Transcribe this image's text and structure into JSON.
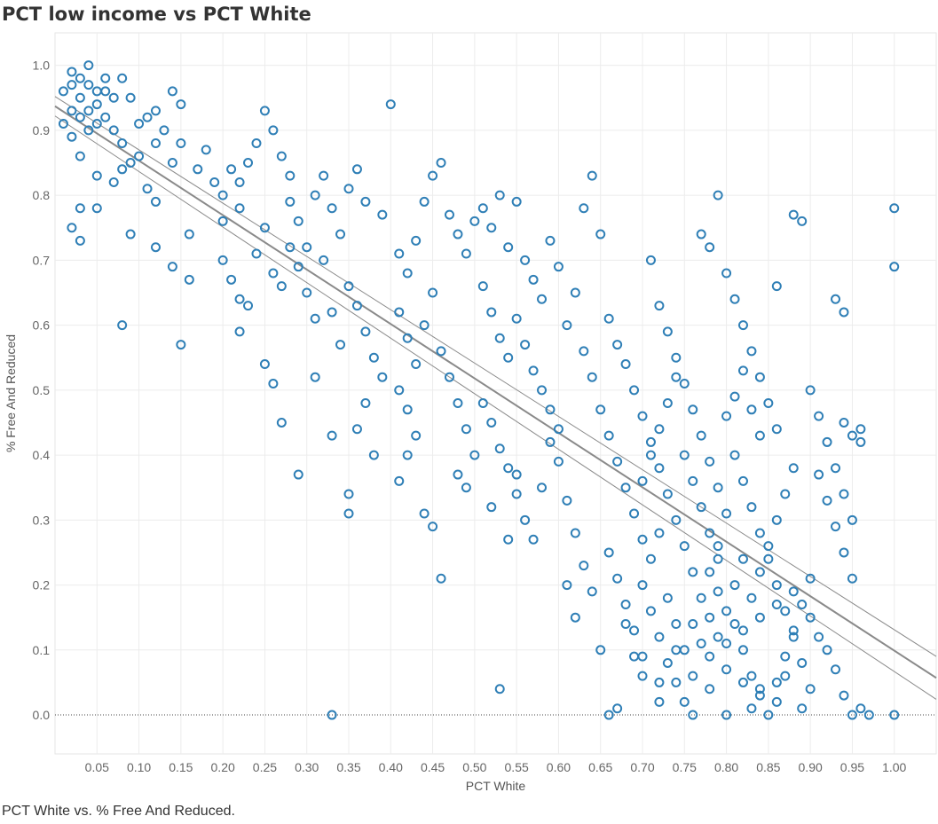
{
  "title": "PCT low income vs PCT White",
  "caption": "PCT White vs. % Free And Reduced.",
  "chart_data": {
    "type": "scatter",
    "title": "PCT low income vs PCT White",
    "xlabel": "PCT White",
    "ylabel": "% Free And Reduced",
    "xlim": [
      0.0,
      1.05
    ],
    "ylim": [
      -0.06,
      1.05
    ],
    "xticks": [
      "0.05",
      "0.10",
      "0.15",
      "0.20",
      "0.25",
      "0.30",
      "0.35",
      "0.40",
      "0.45",
      "0.50",
      "0.55",
      "0.60",
      "0.65",
      "0.70",
      "0.75",
      "0.80",
      "0.85",
      "0.90",
      "0.95",
      "1.00"
    ],
    "yticks": [
      "0.0",
      "0.1",
      "0.2",
      "0.3",
      "0.4",
      "0.5",
      "0.6",
      "0.7",
      "0.8",
      "0.9",
      "1.0"
    ],
    "grid": true,
    "marker_color": "#2f7fb6",
    "trend_color": "#8a8a8a",
    "trend_line": {
      "intercept": 0.937,
      "slope": -0.838,
      "band": 0.015
    },
    "points": [
      [
        0.01,
        0.96
      ],
      [
        0.02,
        0.99
      ],
      [
        0.02,
        0.97
      ],
      [
        0.03,
        0.98
      ],
      [
        0.03,
        0.95
      ],
      [
        0.04,
        0.97
      ],
      [
        0.04,
        1.0
      ],
      [
        0.05,
        0.96
      ],
      [
        0.05,
        0.94
      ],
      [
        0.06,
        0.98
      ],
      [
        0.06,
        0.96
      ],
      [
        0.07,
        0.95
      ],
      [
        0.02,
        0.93
      ],
      [
        0.03,
        0.92
      ],
      [
        0.04,
        0.93
      ],
      [
        0.05,
        0.91
      ],
      [
        0.06,
        0.92
      ],
      [
        0.08,
        0.98
      ],
      [
        0.09,
        0.95
      ],
      [
        0.01,
        0.91
      ],
      [
        0.02,
        0.89
      ],
      [
        0.03,
        0.86
      ],
      [
        0.04,
        0.9
      ],
      [
        0.07,
        0.9
      ],
      [
        0.08,
        0.88
      ],
      [
        0.1,
        0.91
      ],
      [
        0.11,
        0.92
      ],
      [
        0.12,
        0.93
      ],
      [
        0.13,
        0.9
      ],
      [
        0.14,
        0.96
      ],
      [
        0.15,
        0.94
      ],
      [
        0.09,
        0.85
      ],
      [
        0.1,
        0.86
      ],
      [
        0.12,
        0.88
      ],
      [
        0.14,
        0.85
      ],
      [
        0.15,
        0.88
      ],
      [
        0.05,
        0.83
      ],
      [
        0.07,
        0.82
      ],
      [
        0.08,
        0.84
      ],
      [
        0.11,
        0.81
      ],
      [
        0.12,
        0.79
      ],
      [
        0.03,
        0.78
      ],
      [
        0.05,
        0.78
      ],
      [
        0.02,
        0.75
      ],
      [
        0.03,
        0.73
      ],
      [
        0.08,
        0.6
      ],
      [
        0.09,
        0.74
      ],
      [
        0.12,
        0.72
      ],
      [
        0.14,
        0.69
      ],
      [
        0.15,
        0.57
      ],
      [
        0.16,
        0.67
      ],
      [
        0.16,
        0.74
      ],
      [
        0.17,
        0.84
      ],
      [
        0.18,
        0.87
      ],
      [
        0.19,
        0.82
      ],
      [
        0.2,
        0.8
      ],
      [
        0.2,
        0.76
      ],
      [
        0.21,
        0.84
      ],
      [
        0.22,
        0.82
      ],
      [
        0.22,
        0.78
      ],
      [
        0.23,
        0.85
      ],
      [
        0.24,
        0.88
      ],
      [
        0.25,
        0.93
      ],
      [
        0.26,
        0.9
      ],
      [
        0.27,
        0.86
      ],
      [
        0.28,
        0.83
      ],
      [
        0.28,
        0.79
      ],
      [
        0.29,
        0.76
      ],
      [
        0.3,
        0.72
      ],
      [
        0.31,
        0.8
      ],
      [
        0.32,
        0.83
      ],
      [
        0.33,
        0.78
      ],
      [
        0.34,
        0.74
      ],
      [
        0.35,
        0.81
      ],
      [
        0.36,
        0.84
      ],
      [
        0.37,
        0.79
      ],
      [
        0.2,
        0.7
      ],
      [
        0.21,
        0.67
      ],
      [
        0.22,
        0.64
      ],
      [
        0.23,
        0.63
      ],
      [
        0.24,
        0.71
      ],
      [
        0.25,
        0.75
      ],
      [
        0.26,
        0.68
      ],
      [
        0.27,
        0.66
      ],
      [
        0.28,
        0.72
      ],
      [
        0.29,
        0.69
      ],
      [
        0.3,
        0.65
      ],
      [
        0.31,
        0.61
      ],
      [
        0.32,
        0.7
      ],
      [
        0.33,
        0.62
      ],
      [
        0.34,
        0.57
      ],
      [
        0.35,
        0.66
      ],
      [
        0.36,
        0.63
      ],
      [
        0.37,
        0.59
      ],
      [
        0.38,
        0.55
      ],
      [
        0.39,
        0.52
      ],
      [
        0.22,
        0.59
      ],
      [
        0.25,
        0.54
      ],
      [
        0.26,
        0.51
      ],
      [
        0.27,
        0.45
      ],
      [
        0.29,
        0.37
      ],
      [
        0.31,
        0.52
      ],
      [
        0.33,
        0.43
      ],
      [
        0.35,
        0.34
      ],
      [
        0.35,
        0.31
      ],
      [
        0.36,
        0.44
      ],
      [
        0.37,
        0.48
      ],
      [
        0.38,
        0.4
      ],
      [
        0.39,
        0.77
      ],
      [
        0.4,
        0.94
      ],
      [
        0.41,
        0.71
      ],
      [
        0.42,
        0.68
      ],
      [
        0.43,
        0.73
      ],
      [
        0.44,
        0.79
      ],
      [
        0.45,
        0.83
      ],
      [
        0.46,
        0.85
      ],
      [
        0.47,
        0.77
      ],
      [
        0.48,
        0.74
      ],
      [
        0.49,
        0.71
      ],
      [
        0.5,
        0.76
      ],
      [
        0.41,
        0.62
      ],
      [
        0.42,
        0.58
      ],
      [
        0.43,
        0.54
      ],
      [
        0.44,
        0.6
      ],
      [
        0.45,
        0.65
      ],
      [
        0.46,
        0.56
      ],
      [
        0.47,
        0.52
      ],
      [
        0.48,
        0.48
      ],
      [
        0.49,
        0.44
      ],
      [
        0.5,
        0.4
      ],
      [
        0.41,
        0.5
      ],
      [
        0.42,
        0.47
      ],
      [
        0.43,
        0.43
      ],
      [
        0.41,
        0.36
      ],
      [
        0.42,
        0.4
      ],
      [
        0.44,
        0.31
      ],
      [
        0.45,
        0.29
      ],
      [
        0.46,
        0.21
      ],
      [
        0.48,
        0.37
      ],
      [
        0.49,
        0.35
      ],
      [
        0.51,
        0.78
      ],
      [
        0.52,
        0.75
      ],
      [
        0.53,
        0.8
      ],
      [
        0.54,
        0.72
      ],
      [
        0.55,
        0.79
      ],
      [
        0.56,
        0.7
      ],
      [
        0.57,
        0.67
      ],
      [
        0.58,
        0.64
      ],
      [
        0.59,
        0.73
      ],
      [
        0.6,
        0.69
      ],
      [
        0.51,
        0.66
      ],
      [
        0.52,
        0.62
      ],
      [
        0.53,
        0.58
      ],
      [
        0.54,
        0.55
      ],
      [
        0.55,
        0.61
      ],
      [
        0.56,
        0.57
      ],
      [
        0.57,
        0.53
      ],
      [
        0.58,
        0.5
      ],
      [
        0.59,
        0.47
      ],
      [
        0.6,
        0.44
      ],
      [
        0.51,
        0.48
      ],
      [
        0.52,
        0.45
      ],
      [
        0.53,
        0.41
      ],
      [
        0.54,
        0.38
      ],
      [
        0.55,
        0.34
      ],
      [
        0.56,
        0.3
      ],
      [
        0.57,
        0.27
      ],
      [
        0.58,
        0.35
      ],
      [
        0.59,
        0.42
      ],
      [
        0.6,
        0.39
      ],
      [
        0.52,
        0.32
      ],
      [
        0.53,
        0.04
      ],
      [
        0.54,
        0.27
      ],
      [
        0.55,
        0.37
      ],
      [
        0.61,
        0.33
      ],
      [
        0.62,
        0.28
      ],
      [
        0.61,
        0.6
      ],
      [
        0.62,
        0.65
      ],
      [
        0.63,
        0.78
      ],
      [
        0.64,
        0.83
      ],
      [
        0.65,
        0.74
      ],
      [
        0.63,
        0.56
      ],
      [
        0.64,
        0.52
      ],
      [
        0.65,
        0.47
      ],
      [
        0.66,
        0.43
      ],
      [
        0.67,
        0.39
      ],
      [
        0.68,
        0.35
      ],
      [
        0.69,
        0.31
      ],
      [
        0.7,
        0.27
      ],
      [
        0.61,
        0.2
      ],
      [
        0.62,
        0.15
      ],
      [
        0.63,
        0.23
      ],
      [
        0.64,
        0.19
      ],
      [
        0.65,
        0.1
      ],
      [
        0.66,
        0.0
      ],
      [
        0.67,
        0.01
      ],
      [
        0.68,
        0.14
      ],
      [
        0.69,
        0.09
      ],
      [
        0.7,
        0.06
      ],
      [
        0.66,
        0.61
      ],
      [
        0.67,
        0.57
      ],
      [
        0.68,
        0.54
      ],
      [
        0.69,
        0.5
      ],
      [
        0.7,
        0.46
      ],
      [
        0.71,
        0.42
      ],
      [
        0.72,
        0.38
      ],
      [
        0.73,
        0.34
      ],
      [
        0.74,
        0.3
      ],
      [
        0.75,
        0.26
      ],
      [
        0.76,
        0.22
      ],
      [
        0.71,
        0.7
      ],
      [
        0.72,
        0.63
      ],
      [
        0.73,
        0.59
      ],
      [
        0.74,
        0.55
      ],
      [
        0.75,
        0.51
      ],
      [
        0.76,
        0.47
      ],
      [
        0.77,
        0.43
      ],
      [
        0.78,
        0.39
      ],
      [
        0.79,
        0.35
      ],
      [
        0.8,
        0.31
      ],
      [
        0.71,
        0.16
      ],
      [
        0.72,
        0.12
      ],
      [
        0.73,
        0.08
      ],
      [
        0.74,
        0.05
      ],
      [
        0.75,
        0.02
      ],
      [
        0.76,
        0.0
      ],
      [
        0.77,
        0.11
      ],
      [
        0.78,
        0.15
      ],
      [
        0.79,
        0.19
      ],
      [
        0.8,
        0.07
      ],
      [
        0.77,
        0.74
      ],
      [
        0.78,
        0.72
      ],
      [
        0.79,
        0.8
      ],
      [
        0.8,
        0.68
      ],
      [
        0.81,
        0.64
      ],
      [
        0.82,
        0.6
      ],
      [
        0.83,
        0.56
      ],
      [
        0.84,
        0.52
      ],
      [
        0.85,
        0.48
      ],
      [
        0.86,
        0.44
      ],
      [
        0.81,
        0.4
      ],
      [
        0.82,
        0.36
      ],
      [
        0.83,
        0.32
      ],
      [
        0.84,
        0.28
      ],
      [
        0.85,
        0.24
      ],
      [
        0.86,
        0.2
      ],
      [
        0.87,
        0.16
      ],
      [
        0.88,
        0.12
      ],
      [
        0.89,
        0.08
      ],
      [
        0.9,
        0.04
      ],
      [
        0.81,
        0.14
      ],
      [
        0.82,
        0.1
      ],
      [
        0.83,
        0.06
      ],
      [
        0.84,
        0.03
      ],
      [
        0.85,
        0.0
      ],
      [
        0.86,
        0.05
      ],
      [
        0.87,
        0.09
      ],
      [
        0.88,
        0.13
      ],
      [
        0.89,
        0.17
      ],
      [
        0.9,
        0.21
      ],
      [
        0.79,
        0.12
      ],
      [
        0.8,
        0.16
      ],
      [
        0.81,
        0.2
      ],
      [
        0.82,
        0.24
      ],
      [
        0.83,
        0.18
      ],
      [
        0.84,
        0.22
      ],
      [
        0.85,
        0.26
      ],
      [
        0.86,
        0.3
      ],
      [
        0.87,
        0.34
      ],
      [
        0.88,
        0.38
      ],
      [
        0.86,
        0.66
      ],
      [
        0.88,
        0.77
      ],
      [
        0.89,
        0.76
      ],
      [
        0.9,
        0.5
      ],
      [
        0.91,
        0.46
      ],
      [
        0.92,
        0.42
      ],
      [
        0.93,
        0.38
      ],
      [
        0.94,
        0.34
      ],
      [
        0.95,
        0.3
      ],
      [
        0.96,
        0.44
      ],
      [
        0.91,
        0.37
      ],
      [
        0.92,
        0.33
      ],
      [
        0.93,
        0.29
      ],
      [
        0.94,
        0.25
      ],
      [
        0.95,
        0.21
      ],
      [
        0.96,
        0.42
      ],
      [
        0.95,
        0.43
      ],
      [
        0.94,
        0.45
      ],
      [
        0.93,
        0.64
      ],
      [
        0.94,
        0.62
      ],
      [
        0.91,
        0.12
      ],
      [
        0.92,
        0.1
      ],
      [
        0.93,
        0.07
      ],
      [
        0.94,
        0.03
      ],
      [
        0.95,
        0.0
      ],
      [
        0.96,
        0.01
      ],
      [
        0.97,
        0.0
      ],
      [
        1.0,
        0.78
      ],
      [
        1.0,
        0.69
      ],
      [
        1.0,
        0.0
      ],
      [
        0.33,
        0.0
      ],
      [
        0.72,
        0.02
      ],
      [
        0.78,
        0.04
      ],
      [
        0.8,
        0.0
      ],
      [
        0.83,
        0.01
      ],
      [
        0.84,
        0.04
      ],
      [
        0.86,
        0.02
      ],
      [
        0.89,
        0.01
      ],
      [
        0.87,
        0.06
      ],
      [
        0.82,
        0.05
      ],
      [
        0.7,
        0.2
      ],
      [
        0.71,
        0.24
      ],
      [
        0.72,
        0.28
      ],
      [
        0.73,
        0.18
      ],
      [
        0.74,
        0.14
      ],
      [
        0.75,
        0.1
      ],
      [
        0.76,
        0.06
      ],
      [
        0.77,
        0.18
      ],
      [
        0.78,
        0.22
      ],
      [
        0.79,
        0.26
      ],
      [
        0.66,
        0.25
      ],
      [
        0.67,
        0.21
      ],
      [
        0.68,
        0.17
      ],
      [
        0.69,
        0.13
      ],
      [
        0.7,
        0.09
      ],
      [
        0.72,
        0.05
      ],
      [
        0.74,
        0.1
      ],
      [
        0.76,
        0.14
      ],
      [
        0.78,
        0.09
      ],
      [
        0.8,
        0.11
      ],
      [
        0.82,
        0.13
      ],
      [
        0.84,
        0.15
      ],
      [
        0.86,
        0.17
      ],
      [
        0.88,
        0.19
      ],
      [
        0.9,
        0.15
      ],
      [
        0.8,
        0.46
      ],
      [
        0.81,
        0.49
      ],
      [
        0.82,
        0.53
      ],
      [
        0.83,
        0.47
      ],
      [
        0.84,
        0.43
      ],
      [
        0.75,
        0.4
      ],
      [
        0.76,
        0.36
      ],
      [
        0.77,
        0.32
      ],
      [
        0.78,
        0.28
      ],
      [
        0.79,
        0.24
      ],
      [
        0.7,
        0.36
      ],
      [
        0.71,
        0.4
      ],
      [
        0.72,
        0.44
      ],
      [
        0.73,
        0.48
      ],
      [
        0.74,
        0.52
      ]
    ]
  }
}
